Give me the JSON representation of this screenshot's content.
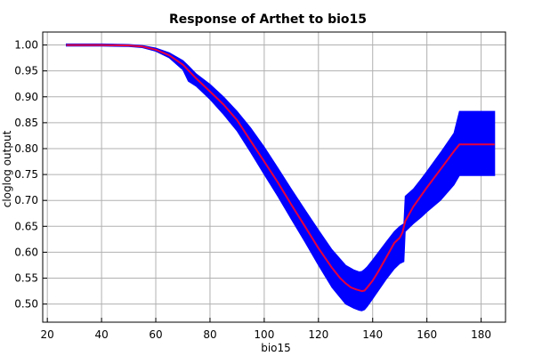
{
  "chart_data": {
    "type": "line",
    "title": "Response of Arthet to bio15",
    "xlabel": "bio15",
    "ylabel": "cloglog output",
    "xlim": [
      18.3,
      189
    ],
    "ylim": [
      0.465,
      1.025
    ],
    "xticks": [
      20,
      40,
      60,
      80,
      100,
      120,
      140,
      160,
      180
    ],
    "yticks": [
      0.5,
      0.55,
      0.6,
      0.65,
      0.7,
      0.75,
      0.8,
      0.85,
      0.9,
      0.95,
      1.0
    ],
    "xtick_labels": [
      "20",
      "40",
      "60",
      "80",
      "100",
      "120",
      "140",
      "160",
      "180"
    ],
    "ytick_labels": [
      "0.50",
      "0.55",
      "0.60",
      "0.65",
      "0.70",
      "0.75",
      "0.80",
      "0.85",
      "0.90",
      "0.95",
      "1.00"
    ],
    "grid": true,
    "colors": {
      "mean": "#e8003c",
      "band": "#0000ff",
      "grid": "#b0b0b0"
    },
    "series": [
      {
        "type": "line",
        "x": [
          27,
          40,
          50,
          55,
          60,
          65,
          70,
          75,
          80,
          85,
          90,
          95,
          100,
          105,
          110,
          115,
          120,
          125,
          128,
          130,
          132,
          134,
          136,
          137,
          138,
          140,
          142,
          145,
          148,
          150,
          151,
          152,
          155,
          160,
          165,
          170,
          172,
          185
        ],
        "y": [
          1.0,
          1.0,
          0.999,
          0.997,
          0.991,
          0.98,
          0.962,
          0.935,
          0.91,
          0.885,
          0.855,
          0.815,
          0.775,
          0.735,
          0.692,
          0.65,
          0.608,
          0.57,
          0.55,
          0.54,
          0.532,
          0.528,
          0.525,
          0.526,
          0.532,
          0.545,
          0.562,
          0.59,
          0.618,
          0.628,
          0.638,
          0.66,
          0.688,
          0.725,
          0.76,
          0.795,
          0.808,
          0.808
        ]
      },
      {
        "type": "band",
        "x": [
          27,
          40,
          50,
          55,
          60,
          65,
          70,
          72,
          75,
          80,
          85,
          90,
          95,
          100,
          105,
          110,
          115,
          120,
          125,
          130,
          133,
          135,
          136,
          137,
          138,
          140,
          145,
          148,
          150,
          151.5,
          152,
          155,
          158,
          160,
          165,
          170,
          172,
          185
        ],
        "y_upper": [
          1.002,
          1.002,
          1.001,
          0.999,
          0.994,
          0.985,
          0.97,
          0.96,
          0.944,
          0.924,
          0.9,
          0.872,
          0.84,
          0.803,
          0.763,
          0.722,
          0.682,
          0.643,
          0.605,
          0.575,
          0.566,
          0.562,
          0.563,
          0.567,
          0.572,
          0.585,
          0.62,
          0.64,
          0.65,
          0.655,
          0.708,
          0.722,
          0.742,
          0.756,
          0.792,
          0.83,
          0.872,
          0.872
        ],
        "y_lower": [
          0.998,
          0.998,
          0.997,
          0.995,
          0.988,
          0.975,
          0.952,
          0.93,
          0.92,
          0.895,
          0.866,
          0.834,
          0.793,
          0.75,
          0.708,
          0.664,
          0.62,
          0.575,
          0.532,
          0.5,
          0.492,
          0.488,
          0.487,
          0.489,
          0.495,
          0.51,
          0.548,
          0.568,
          0.578,
          0.582,
          0.64,
          0.655,
          0.668,
          0.678,
          0.7,
          0.73,
          0.748,
          0.748
        ]
      }
    ]
  }
}
